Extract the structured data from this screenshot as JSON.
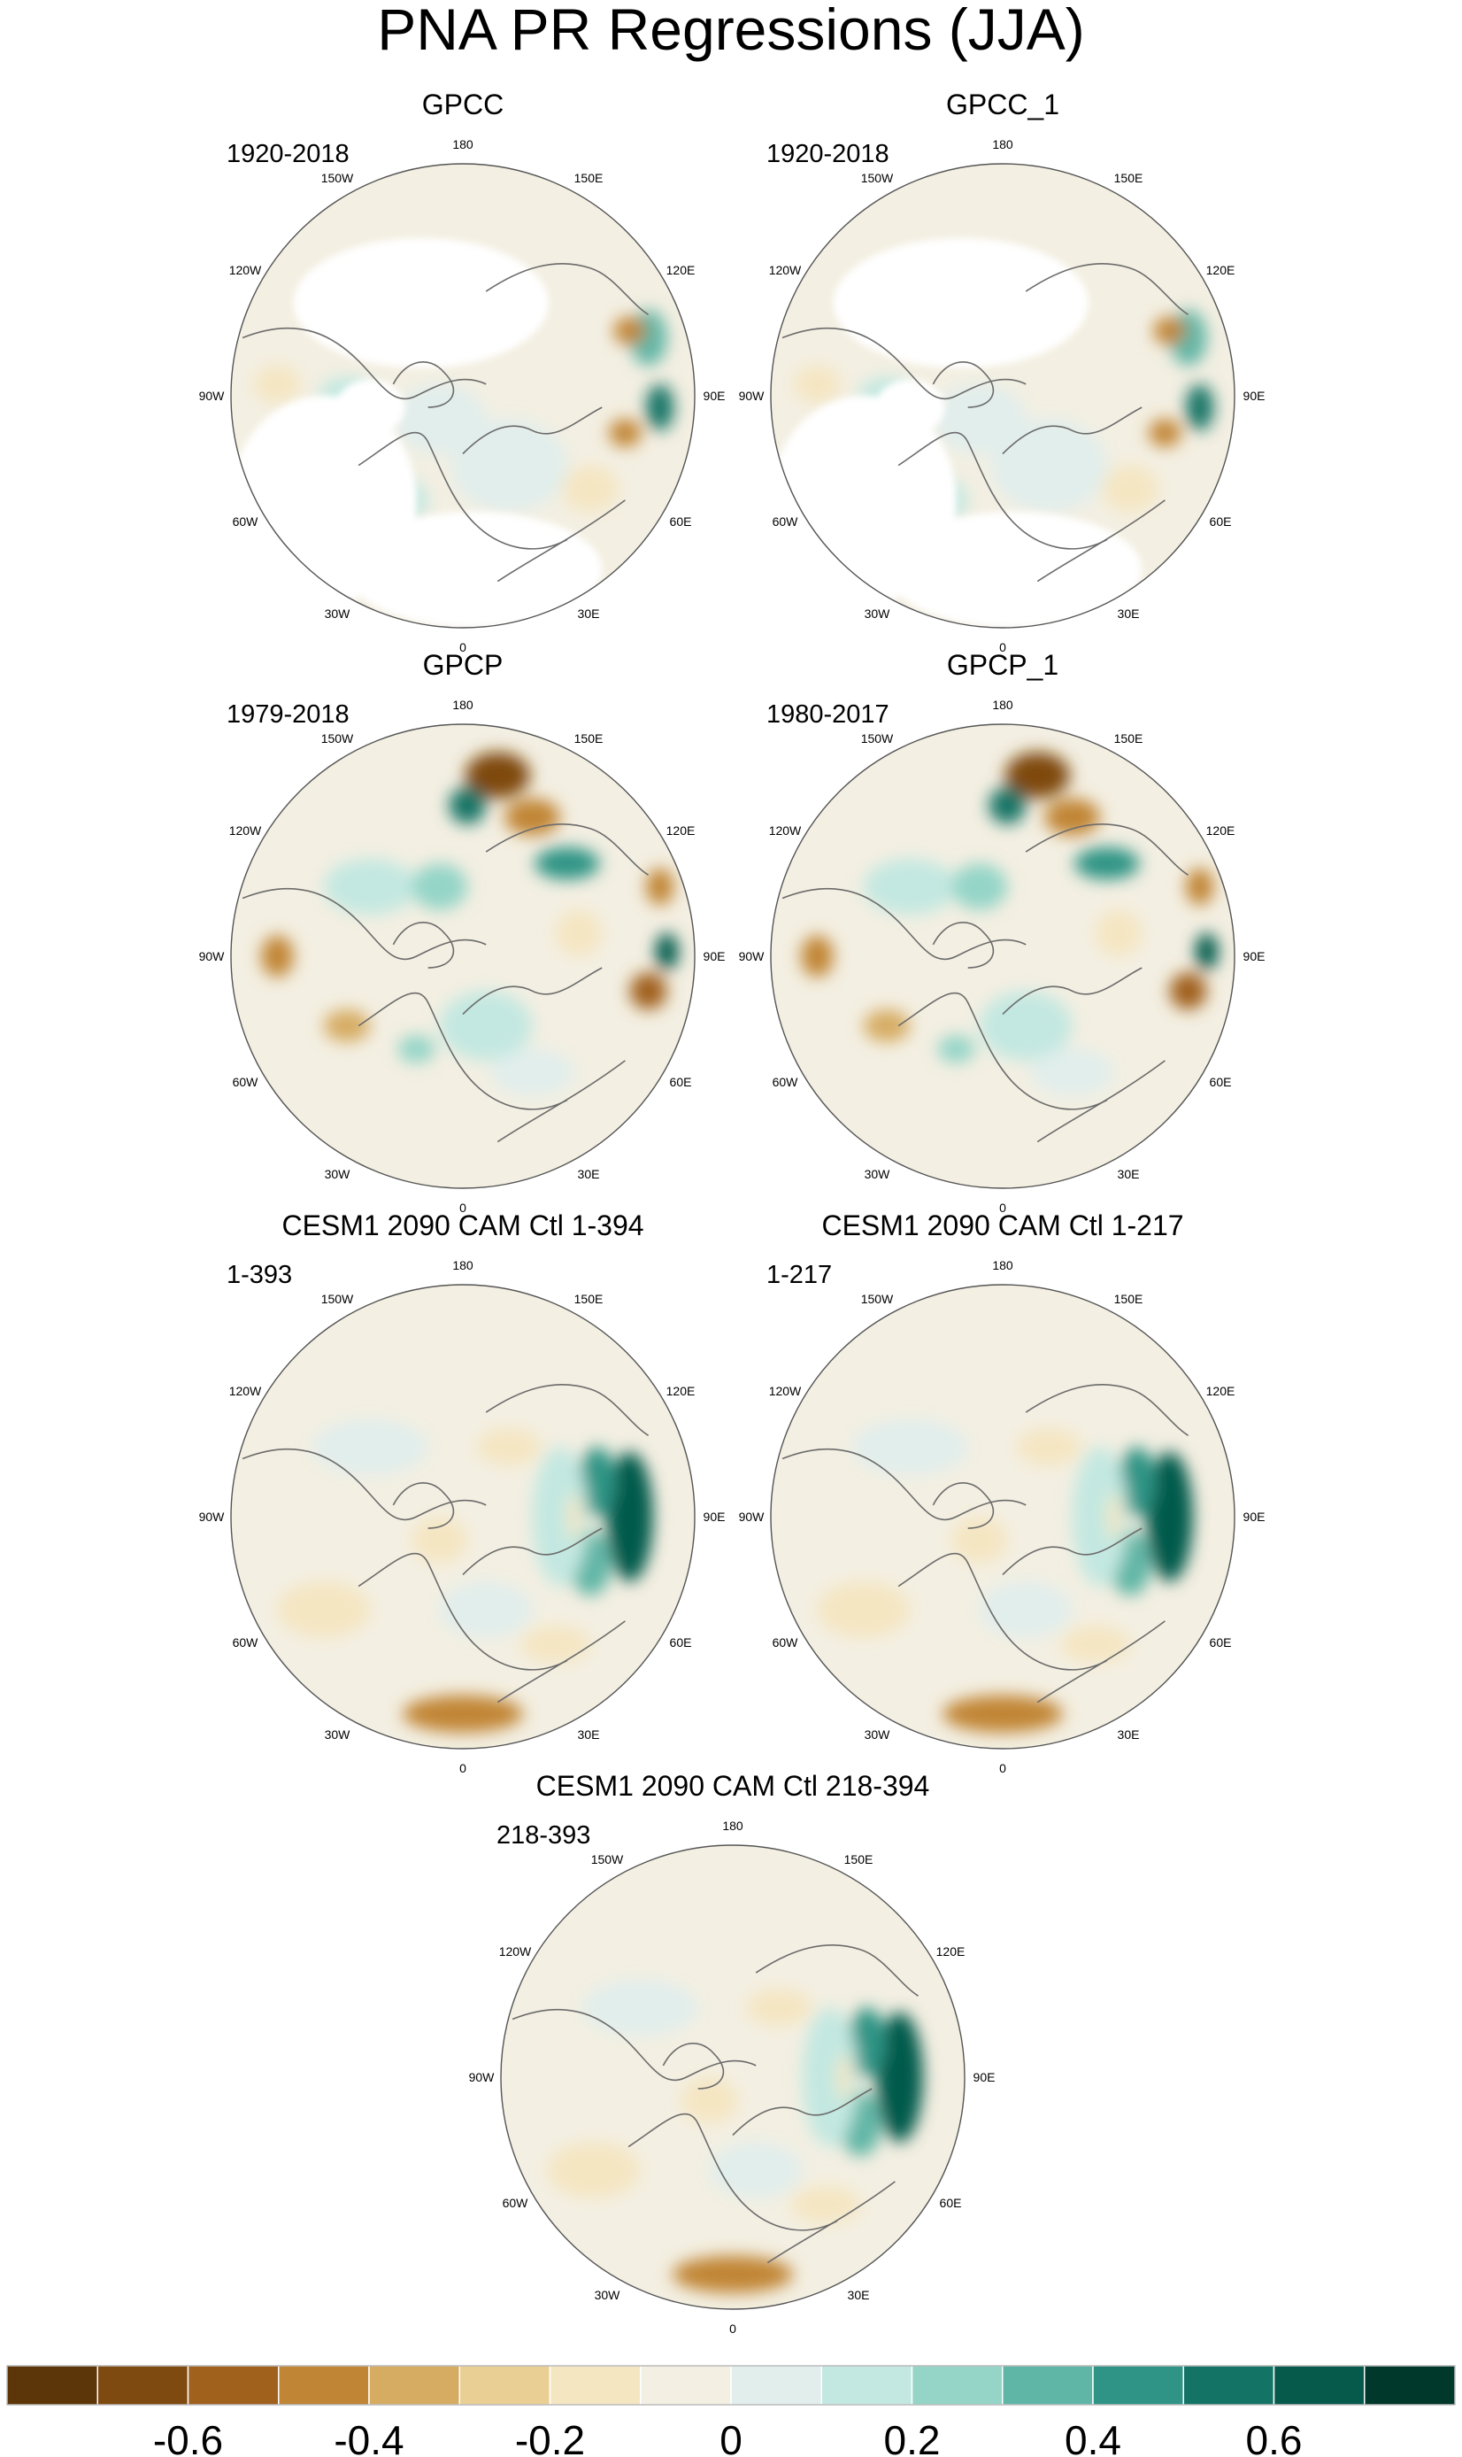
{
  "figure": {
    "title": "PNA PR Regressions (JJA)"
  },
  "panels": [
    {
      "title": "GPCC",
      "period": "1920-2018",
      "pattern": "gpcc"
    },
    {
      "title": "GPCC_1",
      "period": "1920-2018",
      "pattern": "gpcc"
    },
    {
      "title": "GPCP",
      "period": "1979-2018",
      "pattern": "gpcp"
    },
    {
      "title": "GPCP_1",
      "period": "1980-2017",
      "pattern": "gpcp"
    },
    {
      "title": "CESM1 2090 CAM Ctl 1-394",
      "period": "1-393",
      "pattern": "cesm"
    },
    {
      "title": "CESM1 2090 CAM Ctl 1-217",
      "period": "1-217",
      "pattern": "cesm"
    },
    {
      "title": "CESM1 2090 CAM Ctl 218-394",
      "period": "218-393",
      "pattern": "cesm"
    }
  ],
  "longitude_labels": [
    "180",
    "150E",
    "120E",
    "90E",
    "60E",
    "30E",
    "0",
    "30W",
    "60W",
    "90W",
    "120W",
    "150W"
  ],
  "colorbar": {
    "colors": [
      "#5c3508",
      "#7f4a0f",
      "#a0611d",
      "#c18536",
      "#d6ac63",
      "#e9cf94",
      "#f5e6c2",
      "#f3efe2",
      "#e1eeec",
      "#c3e8e1",
      "#94d5c8",
      "#60b6a6",
      "#2f9485",
      "#137466",
      "#065a4b",
      "#00382b"
    ],
    "tick_labels": [
      "-0.6",
      "-0.4",
      "-0.2",
      "0",
      "0.2",
      "0.4",
      "0.6"
    ]
  }
}
